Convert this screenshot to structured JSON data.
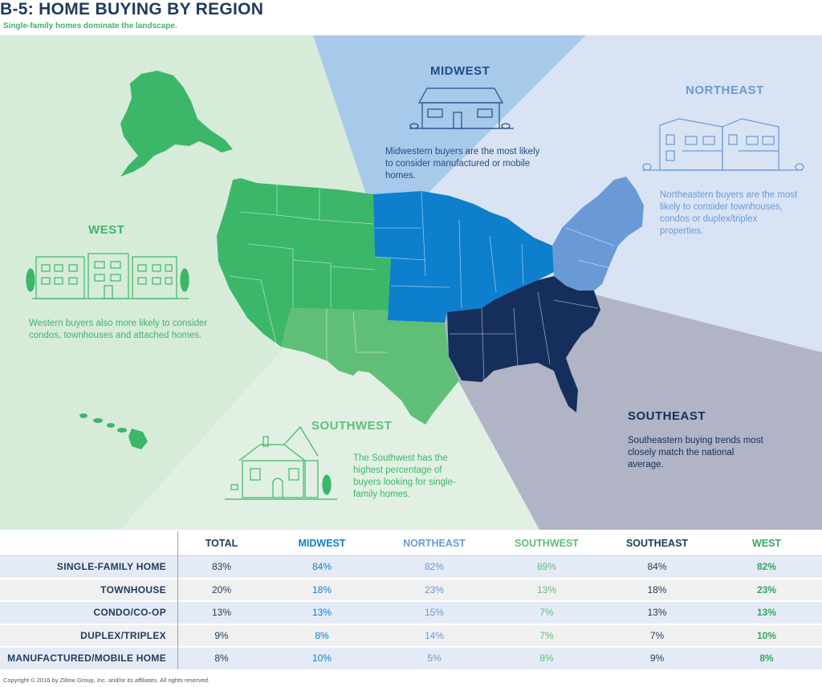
{
  "title": "B-5: HOME BUYING BY REGION",
  "subtitle": "Single-family homes dominate the landscape.",
  "colors": {
    "west": "#3cb76a",
    "southwest": "#5fbf77",
    "midwest": "#0e7fcd",
    "northeast": "#5f95d6",
    "southeast": "#162e5c",
    "title": "#1f3a5c"
  },
  "regions": {
    "west": {
      "name": "WEST",
      "description": "Western buyers also more likely to consider condos, townhouses and attached homes."
    },
    "midwest": {
      "name": "MIDWEST",
      "description": "Midwestern buyers are the most likely to consider manufactured or mobile homes."
    },
    "northeast": {
      "name": "NORTHEAST",
      "description": "Northeastern buyers are the most likely to consider townhouses, condos or duplex/triplex properties."
    },
    "southwest": {
      "name": "SOUTHWEST",
      "description": "The Southwest has the highest percentage of buyers looking for single-family homes."
    },
    "southeast": {
      "name": "SOUTHEAST",
      "description": "Southeastern buying trends most closely match the national average."
    }
  },
  "icons": {
    "west": "apartment-building-icon",
    "midwest": "single-story-house-icon",
    "northeast": "townhouse-icon",
    "southwest": "single-family-house-icon"
  },
  "chart_data": {
    "type": "table",
    "columns": [
      "TOTAL",
      "MIDWEST",
      "NORTHEAST",
      "SOUTHWEST",
      "SOUTHEAST",
      "WEST"
    ],
    "column_colors": [
      "#1f3a5c",
      "#0e7fcd",
      "#6a9ad6",
      "#5fbf77",
      "#1f3a5c",
      "#2fa864"
    ],
    "rows": [
      {
        "label": "SINGLE-FAMILY HOME",
        "values": [
          "83%",
          "84%",
          "82%",
          "89%",
          "84%",
          "82%"
        ]
      },
      {
        "label": "TOWNHOUSE",
        "values": [
          "20%",
          "18%",
          "23%",
          "13%",
          "18%",
          "23%"
        ]
      },
      {
        "label": "CONDO/CO-OP",
        "values": [
          "13%",
          "13%",
          "15%",
          "7%",
          "13%",
          "13%"
        ]
      },
      {
        "label": "DUPLEX/TRIPLEX",
        "values": [
          "9%",
          "8%",
          "14%",
          "7%",
          "7%",
          "10%"
        ]
      },
      {
        "label": "MANUFACTURED/MOBILE HOME",
        "values": [
          "8%",
          "10%",
          "5%",
          "8%",
          "9%",
          "8%"
        ]
      }
    ]
  },
  "copyright": "Copyright © 2016 by Zillow Group, Inc. and/or its affiliates. All rights reserved."
}
